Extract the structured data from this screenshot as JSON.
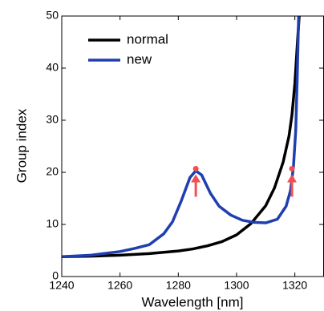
{
  "chart_data": {
    "type": "line",
    "x_label": "Wavelength [nm]",
    "y_label": "Group index",
    "xlim": [
      1240,
      1330
    ],
    "ylim": [
      0,
      50
    ],
    "xticks": [
      1240,
      1260,
      1280,
      1300,
      1320
    ],
    "yticks": [
      0,
      10,
      20,
      30,
      40,
      50
    ],
    "legend": "upper-left",
    "series": [
      {
        "name": "normal",
        "color": "#000000",
        "x": [
          1240,
          1250,
          1260,
          1270,
          1280,
          1285,
          1290,
          1295,
          1300,
          1305,
          1310,
          1313,
          1316,
          1318,
          1319,
          1320,
          1321,
          1321.5
        ],
        "values": [
          3.8,
          3.9,
          4.1,
          4.4,
          4.9,
          5.3,
          5.9,
          6.7,
          8,
          10.2,
          13.6,
          17,
          22,
          27,
          31,
          37,
          46,
          50
        ]
      },
      {
        "name": "new",
        "color": "#1f3fb0",
        "x": [
          1240,
          1250,
          1260,
          1265,
          1270,
          1275,
          1278,
          1281,
          1284,
          1286,
          1288,
          1291,
          1294,
          1298,
          1302,
          1306,
          1310,
          1314,
          1317,
          1318.5,
          1319.5,
          1320.3,
          1320.8,
          1321.3
        ],
        "values": [
          3.8,
          4.1,
          4.8,
          5.4,
          6.1,
          8.2,
          10.5,
          14.5,
          19,
          20.3,
          19.5,
          16,
          13.5,
          11.8,
          10.8,
          10.4,
          10.3,
          11,
          13.5,
          16.5,
          21,
          28,
          38,
          50
        ]
      }
    ],
    "highlights": {
      "color": "#f05050",
      "x": [
        1286,
        1319
      ],
      "values": [
        20.7,
        20.7
      ]
    }
  }
}
